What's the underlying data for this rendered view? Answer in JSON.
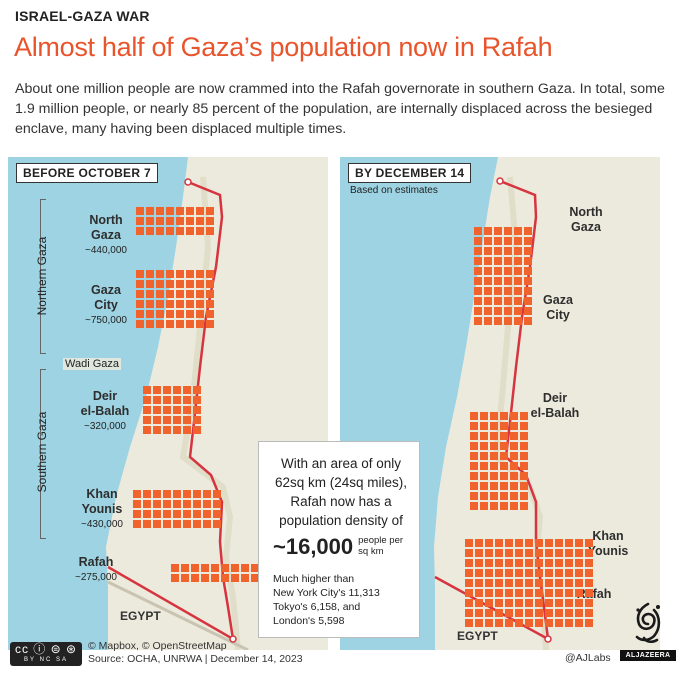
{
  "kicker": "ISRAEL-GAZA WAR",
  "headline": "Almost half of Gaza’s population now in Rafah",
  "intro": "About one million people are now crammed into the Rafah governorate in southern Gaza. In total, some 1.9 million people, or nearly 85 percent of the population, are internally displaced across the besieged enclave, many having been displaced multiple times.",
  "colors": {
    "accent": "#e8542c",
    "square": "#f0632d",
    "sea": "#9dd3e2",
    "land": "#eceadd",
    "border": "#d6343f"
  },
  "before": {
    "tag": "BEFORE OCTOBER 7",
    "region_north": "Northern Gaza",
    "region_south": "Southern Gaza",
    "wadi": "Wadi Gaza",
    "egypt": "EGYPT",
    "places": [
      {
        "name_line1": "North",
        "name_line2": "Gaza",
        "population": "~440,000",
        "squares": 24
      },
      {
        "name_line1": "Gaza",
        "name_line2": "City",
        "population": "~750,000",
        "squares": 48
      },
      {
        "name_line1": "Deir",
        "name_line2": "el-Balah",
        "population": "~320,000",
        "squares": 30
      },
      {
        "name_line1": "Khan",
        "name_line2": "Younis",
        "population": "~430,000",
        "squares": 36
      },
      {
        "name_line1": "Rafah",
        "name_line2": "",
        "population": "~275,000",
        "squares": 20
      }
    ]
  },
  "after": {
    "tag": "BY DECEMBER 14",
    "note": "Based on estimates",
    "egypt": "EGYPT",
    "places": [
      {
        "name_line1": "North",
        "name_line2": "Gaza",
        "squares": 0
      },
      {
        "name_line1": "Gaza",
        "name_line2": "City",
        "squares": 60
      },
      {
        "name_line1": "Deir",
        "name_line2": "el-Balah",
        "squares": 60
      },
      {
        "name_line1": "Khan",
        "name_line2": "Younis",
        "squares": 0
      },
      {
        "name_line1": "Rafah",
        "name_line2": "",
        "squares": 117
      }
    ]
  },
  "callout": {
    "lead": "With an area of only 62sq km (24sq miles), Rafah now has a population density of",
    "density": "~16,000",
    "unit": "people per sq km",
    "compare_head": "Much higher than",
    "compare": [
      "New York City's 11,313",
      "Tokyo's 6,158, and",
      "London's 5,598"
    ]
  },
  "footer": {
    "cc_glyph": "cc ⓘ ⊜ ⊛",
    "cc_sub": "BY NC SA",
    "credit_line1": "© Mapbox, © OpenStreetMap",
    "credit_line2": "Source: OCHA, UNRWA  |  December 14, 2023",
    "handle": "@AJLabs",
    "logo_text": "ALJAZEERA"
  }
}
